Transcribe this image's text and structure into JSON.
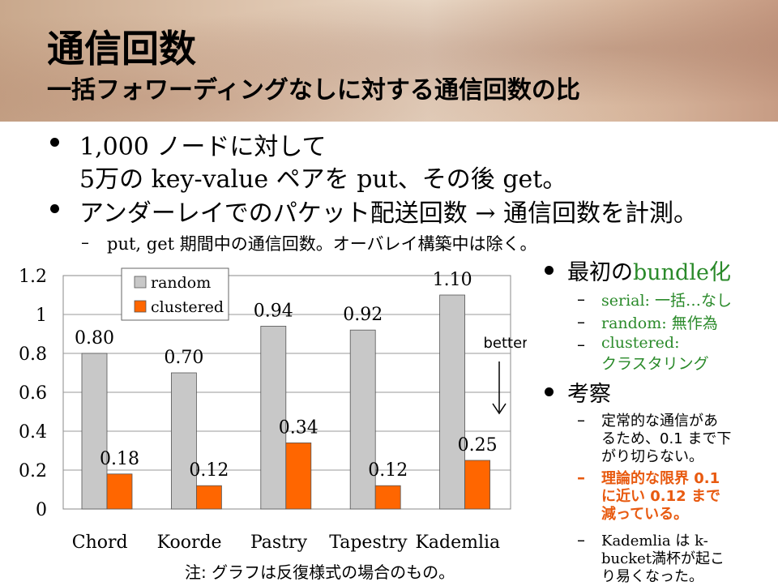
{
  "header": {
    "title": "通信回数",
    "subtitle": "一括フォワーディングなしに対する通信回数の比"
  },
  "bullets": [
    {
      "line1": "1,000 ノードに対して",
      "line2": "5万の key-value ペアを put、その後 get。"
    },
    {
      "line1": "アンダーレイでのパケット配送回数 → 通信回数を計測。"
    }
  ],
  "sub_bullet": "put, get 期間中の通信回数。オーバレイ構築中は除く。",
  "right": {
    "bullet1": "最初のbundle化",
    "items1": [
      "serial:  一括…なし",
      "random:  無作為",
      "clustered:",
      "クラスタリング"
    ],
    "bullet2": "考察",
    "items2": [
      {
        "lines": [
          "定常的な通信があ",
          "るため、0.1 まで下",
          "がり切らない。"
        ]
      },
      {
        "lines": [
          "理論的な限界 0.1",
          "に近い 0.12 まで",
          "減っている。"
        ]
      },
      {
        "lines": [
          "Kademlia は k-",
          "bucket満杯が起こ",
          "り易くなった。"
        ]
      }
    ]
  },
  "note": "注: グラフは反復様式の場合のもの。",
  "chart_data": {
    "type": "bar",
    "categories": [
      "Chord",
      "Koorde",
      "Pastry",
      "Tapestry",
      "Kademlia"
    ],
    "series": [
      {
        "name": "random",
        "values": [
          0.8,
          0.7,
          0.94,
          0.92,
          1.1
        ],
        "labels": [
          "0.80",
          "0.70",
          "0.94",
          "0.92",
          "1.10"
        ],
        "color": "#c8c8c8"
      },
      {
        "name": "clustered",
        "values": [
          0.18,
          0.12,
          0.34,
          0.12,
          0.25
        ],
        "labels": [
          "0.18",
          "0.12",
          "0.34",
          "0.12",
          "0.25"
        ],
        "color": "#ff6600"
      }
    ],
    "ylim": [
      0,
      1.2
    ],
    "yticks": [
      "0",
      "0.2",
      "0.4",
      "0.6",
      "0.8",
      "1",
      "1.2"
    ],
    "annotation": "better",
    "grid": true,
    "legend": "top-left"
  }
}
